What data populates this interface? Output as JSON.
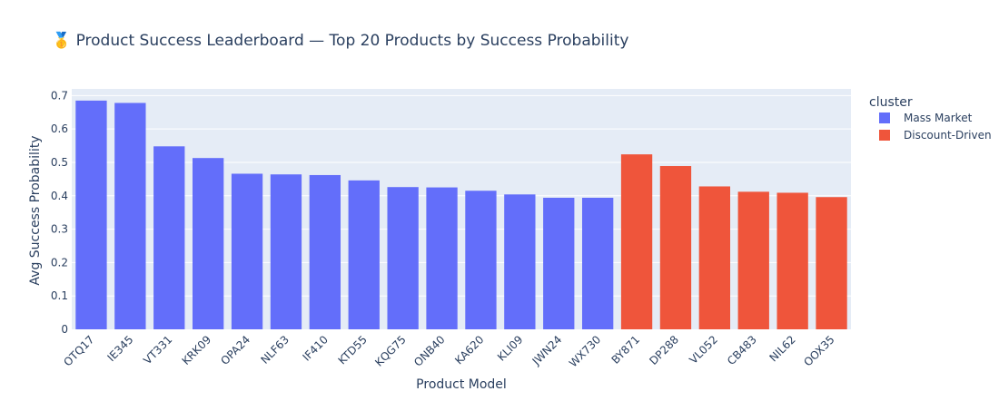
{
  "chart_data": {
    "type": "bar",
    "title": "🥇 Product Success Leaderboard — Top 20 Products by Success Probability",
    "xlabel": "Product Model",
    "ylabel": "Avg Success Probability",
    "ylim": [
      0,
      0.72
    ],
    "yticks": [
      "0",
      "0.1",
      "0.2",
      "0.3",
      "0.4",
      "0.5",
      "0.6",
      "0.7"
    ],
    "legend_title": "cluster",
    "legend_position": "top-right",
    "grid": true,
    "series": [
      {
        "name": "Mass Market",
        "color": "#636efa",
        "categories": [
          "OTQ17",
          "IE345",
          "VT331",
          "KRK09",
          "OPA24",
          "NLF63",
          "IF410",
          "KTD55",
          "KQG75",
          "ONB40",
          "KA620",
          "KLI09",
          "JWN24",
          "WX730"
        ],
        "values": [
          0.685,
          0.678,
          0.548,
          0.513,
          0.466,
          0.464,
          0.462,
          0.446,
          0.426,
          0.425,
          0.415,
          0.404,
          0.394,
          0.394
        ]
      },
      {
        "name": "Discount-Driven",
        "color": "#ef553b",
        "categories": [
          "BY871",
          "DP288",
          "VL052",
          "CB483",
          "NIL62",
          "OOX35"
        ],
        "values": [
          0.524,
          0.489,
          0.428,
          0.412,
          0.409,
          0.396
        ]
      }
    ]
  }
}
